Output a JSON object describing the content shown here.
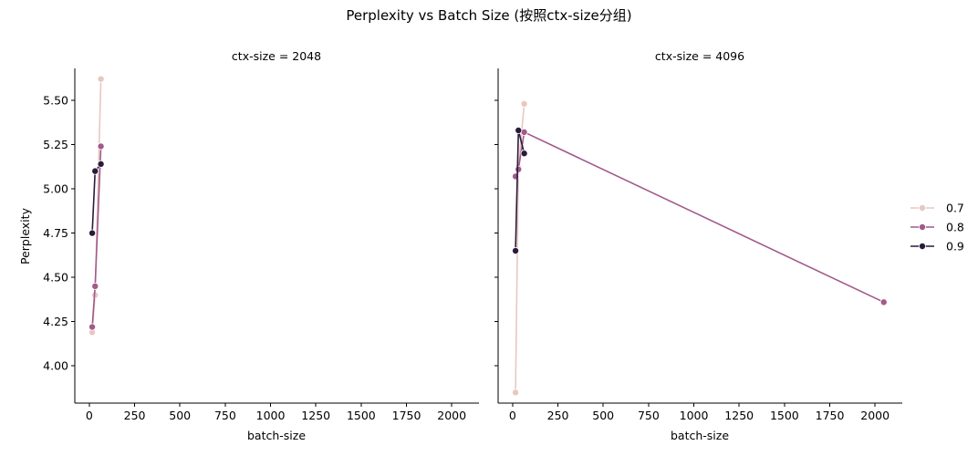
{
  "chart_data": {
    "type": "line",
    "title": "Perplexity vs Batch Size (按照ctx-size分组)",
    "ylabel": "Perplexity",
    "xlabel": "batch-size",
    "xlim": [
      -80,
      2150
    ],
    "ylim": [
      3.79,
      5.68
    ],
    "x_ticks": [
      0,
      250,
      500,
      750,
      1000,
      1250,
      1500,
      1750,
      2000
    ],
    "y_ticks": [
      4.0,
      4.25,
      4.5,
      4.75,
      5.0,
      5.25,
      5.5
    ],
    "grid": false,
    "legend": {
      "placement": "right",
      "title": ""
    },
    "colors": {
      "0.7": "#e9c7c1",
      "0.8": "#a25a8a",
      "0.9": "#2a1b3c"
    },
    "facets": [
      {
        "title": "ctx-size = 2048",
        "series": [
          {
            "name": "0.7",
            "x": [
              16,
              32,
              64
            ],
            "y": [
              4.19,
              4.4,
              5.62
            ]
          },
          {
            "name": "0.8",
            "x": [
              16,
              32,
              64
            ],
            "y": [
              4.22,
              4.45,
              5.24
            ]
          },
          {
            "name": "0.9",
            "x": [
              16,
              32,
              64
            ],
            "y": [
              4.75,
              5.1,
              5.14
            ]
          }
        ]
      },
      {
        "title": "ctx-size = 4096",
        "series": [
          {
            "name": "0.7",
            "x": [
              16,
              32,
              64
            ],
            "y": [
              3.85,
              5.12,
              5.48
            ]
          },
          {
            "name": "0.8",
            "x": [
              16,
              32,
              64,
              2048
            ],
            "y": [
              5.07,
              5.11,
              5.32,
              4.36
            ]
          },
          {
            "name": "0.9",
            "x": [
              16,
              32,
              64
            ],
            "y": [
              4.65,
              5.33,
              5.2
            ]
          }
        ]
      }
    ]
  }
}
